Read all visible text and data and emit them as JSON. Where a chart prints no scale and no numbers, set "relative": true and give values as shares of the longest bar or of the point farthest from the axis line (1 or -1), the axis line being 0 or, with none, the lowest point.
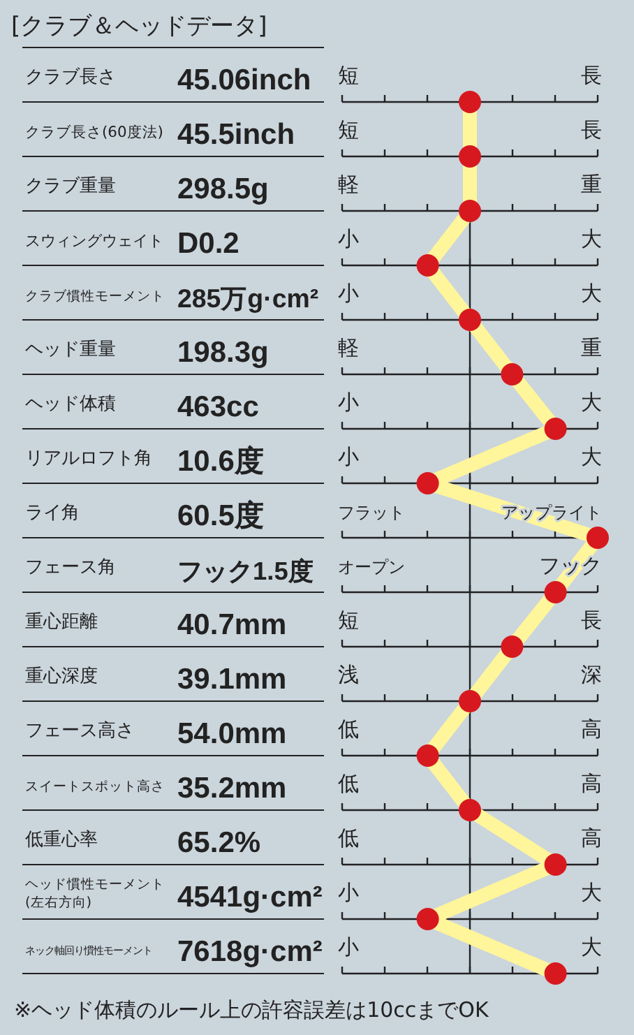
{
  "chart_data": {
    "type": "line",
    "orientation": "horizontal",
    "relative": true,
    "marker": "circle",
    "grid": true,
    "title": "[クラブ＆ヘッドデータ]",
    "categories": [
      "クラブ長さ",
      "クラブ長さ(60度法)",
      "クラブ重量",
      "スウィングウェイト",
      "クラブ慣性モーメント",
      "ヘッド重量",
      "ヘッド体積",
      "リアルロフト角",
      "ライ角",
      "フェース角",
      "重心距離",
      "重心深度",
      "フェース高さ",
      "スイートスポット高さ",
      "低重心率",
      "ヘッド慣性モーメント(左右方向)",
      "ネック軸回り慣性モーメント"
    ],
    "series": [
      {
        "color": "#d7191f",
        "values": [
          0,
          0,
          0,
          -0.33,
          0,
          0.33,
          0.67,
          -0.33,
          1,
          0.67,
          0.33,
          0,
          -0.33,
          0,
          0.67,
          -0.33,
          0.67
        ]
      }
    ],
    "annotations": [
      "45.06inch",
      "短",
      "長",
      "45.5inch",
      "短",
      "長",
      "298.5g",
      "軽",
      "重",
      "D0.2",
      "小",
      "大",
      "285万g·cm²",
      "小",
      "大",
      "198.3g",
      "軽",
      "重",
      "463cc",
      "小",
      "大",
      "10.6度",
      "小",
      "大",
      "60.5度",
      "フラット",
      "アップライト",
      "フック1.5度",
      "オープン",
      "フック",
      "40.7mm",
      "短",
      "長",
      "39.1mm",
      "浅",
      "深",
      "54.0mm",
      "低",
      "高",
      "35.2mm",
      "低",
      "高",
      "65.2%",
      "低",
      "高",
      "4541g·cm²",
      "小",
      "大",
      "7618g·cm²",
      "小",
      "大",
      "※ヘッド体積のルール上の許容誤差は10ccまでOK"
    ]
  }
}
